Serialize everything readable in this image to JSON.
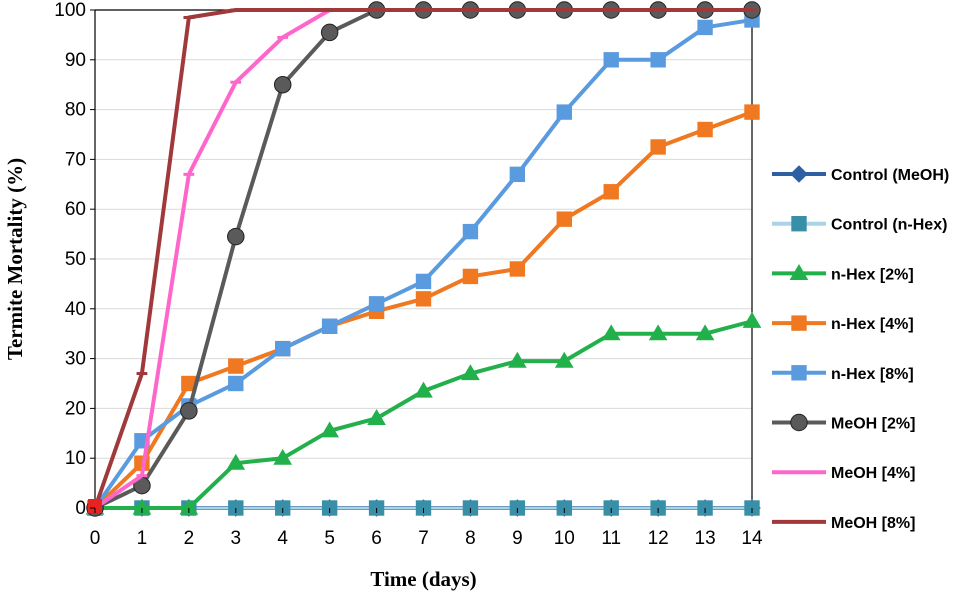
{
  "chart_data": {
    "type": "line",
    "title": "",
    "xlabel": "Time (days)",
    "ylabel": "Termite Mortality (%)",
    "xlim": [
      0,
      14
    ],
    "ylim": [
      0,
      100
    ],
    "x_ticks": [
      "0",
      "1",
      "2",
      "3",
      "4",
      "5",
      "6",
      "7",
      "8",
      "9",
      "10",
      "11",
      "12",
      "13",
      "14"
    ],
    "y_ticks": [
      "0",
      "10",
      "20",
      "30",
      "40",
      "50",
      "60",
      "70",
      "80",
      "90",
      "100"
    ],
    "grid": "horizontal",
    "legend_position": "right",
    "x": [
      0,
      1,
      2,
      3,
      4,
      5,
      6,
      7,
      8,
      9,
      10,
      11,
      12,
      13,
      14
    ],
    "series": [
      {
        "name": "Control (MeOH)",
        "color": "#2E5FA3",
        "marker": "diamond",
        "values": [
          0,
          0,
          0,
          0,
          0,
          0,
          0,
          0,
          0,
          0,
          0,
          0,
          0,
          0,
          0
        ]
      },
      {
        "name": "Control (n-Hex)",
        "color": "#A8D4E6",
        "marker": "square",
        "marker_color": "#3A8FA8",
        "values": [
          0,
          0,
          0,
          0,
          0,
          0,
          0,
          0,
          0,
          0,
          0,
          0,
          0,
          0,
          0
        ]
      },
      {
        "name": "n-Hex [2%]",
        "color": "#22B04B",
        "marker": "triangle",
        "values": [
          0,
          0,
          0,
          9,
          10,
          15.5,
          18,
          23.5,
          27,
          29.5,
          29.5,
          35,
          35,
          35,
          37.5
        ]
      },
      {
        "name": "n-Hex [4%]",
        "color": "#F07820",
        "marker": "square",
        "values": [
          0,
          9,
          25,
          28.5,
          32,
          36.5,
          39.5,
          42,
          46.5,
          48,
          58,
          63.5,
          72.5,
          76,
          79.5
        ]
      },
      {
        "name": "n-Hex [8%]",
        "color": "#5A9BE0",
        "marker": "square",
        "values": [
          0,
          13.5,
          20.5,
          25,
          32,
          36.5,
          41,
          45.5,
          55.5,
          67,
          79.5,
          90,
          90,
          96.5,
          98
        ]
      },
      {
        "name": "MeOH [2%]",
        "color": "#5A5A5A",
        "marker": "circle",
        "values": [
          0,
          4.5,
          19.5,
          54.5,
          85,
          95.5,
          100,
          100,
          100,
          100,
          100,
          100,
          100,
          100,
          100
        ]
      },
      {
        "name": "MeOH [4%]",
        "color": "#FF66CC",
        "marker": "dash",
        "values": [
          0,
          6.5,
          67,
          85.5,
          94.5,
          100,
          100,
          100,
          100,
          100,
          100,
          100,
          100,
          100,
          100
        ]
      },
      {
        "name": "MeOH [8%]",
        "color": "#A0393B",
        "marker": "dash",
        "values": [
          0,
          27,
          98.5,
          100,
          100,
          100,
          100,
          100,
          100,
          100,
          100,
          100,
          100,
          100,
          100
        ]
      }
    ],
    "start_marker_color": "#E8231F"
  }
}
